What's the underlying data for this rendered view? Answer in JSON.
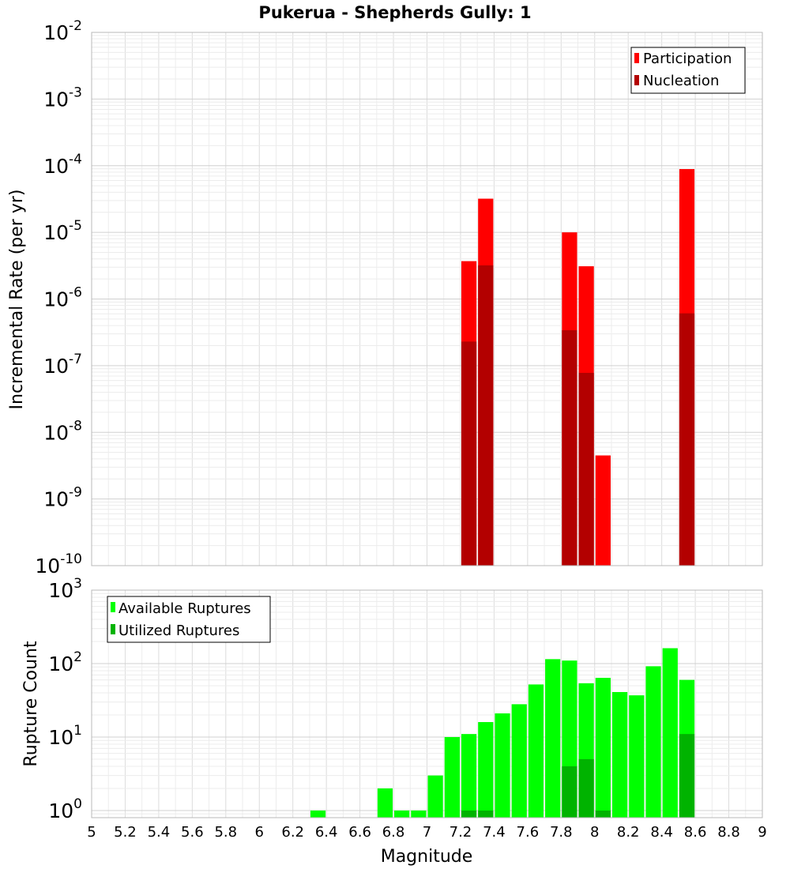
{
  "chart_data": [
    {
      "type": "bar",
      "title": "Pukerua - Shepherds Gully: 1",
      "xlabel": "",
      "ylabel": "Incremental Rate (per yr)",
      "xlim": [
        5,
        9
      ],
      "ylim": [
        1e-10,
        0.01
      ],
      "yscale": "log",
      "grid": true,
      "legend": "top-right",
      "y_tick_exponents": [
        "-2",
        "-3",
        "-4",
        "-5",
        "-6",
        "-7",
        "-8",
        "-9",
        "-10"
      ],
      "y_tick_base": "10",
      "bar_width": 0.1,
      "series": [
        {
          "name": "Participation",
          "color": "#ff0000",
          "x": [
            7.25,
            7.35,
            7.85,
            7.95,
            8.05,
            8.55
          ],
          "values": [
            3.7e-06,
            3.2e-05,
            1e-05,
            3.1e-06,
            4.5e-09,
            8.9e-05
          ]
        },
        {
          "name": "Nucleation",
          "color": "#b30000",
          "x": [
            7.25,
            7.35,
            7.85,
            7.95,
            8.55
          ],
          "values": [
            2.3e-07,
            3.2e-06,
            3.4e-07,
            7.8e-08,
            6.1e-07
          ]
        }
      ]
    },
    {
      "type": "bar",
      "title": "",
      "xlabel": "Magnitude",
      "ylabel": "Rupture Count",
      "xlim": [
        5,
        9
      ],
      "ylim": [
        0.8,
        1000
      ],
      "yscale": "log",
      "grid": true,
      "legend": "top-left",
      "x_ticks": [
        "5",
        "5.2",
        "5.4",
        "5.6",
        "5.8",
        "6",
        "6.2",
        "6.4",
        "6.6",
        "6.8",
        "7",
        "7.2",
        "7.4",
        "7.6",
        "7.8",
        "8",
        "8.2",
        "8.4",
        "8.6",
        "8.8",
        "9"
      ],
      "y_tick_exponents": [
        "3",
        "2",
        "1",
        "0"
      ],
      "y_tick_base": "10",
      "bar_width": 0.1,
      "series": [
        {
          "name": "Available Ruptures",
          "color": "#00ff00",
          "x": [
            6.35,
            6.75,
            6.85,
            6.95,
            7.05,
            7.15,
            7.25,
            7.35,
            7.45,
            7.55,
            7.65,
            7.75,
            7.85,
            7.95,
            8.05,
            8.15,
            8.25,
            8.35,
            8.45,
            8.55
          ],
          "values": [
            1,
            2,
            1,
            1,
            3,
            10,
            11,
            16,
            21,
            28,
            52,
            115,
            110,
            54,
            64,
            41,
            37,
            92,
            162,
            60
          ]
        },
        {
          "name": "Utilized Ruptures",
          "color": "#00b300",
          "x": [
            7.25,
            7.35,
            7.85,
            7.95,
            8.05,
            8.55
          ],
          "values": [
            1,
            1,
            4,
            5,
            1,
            11
          ]
        }
      ]
    }
  ]
}
